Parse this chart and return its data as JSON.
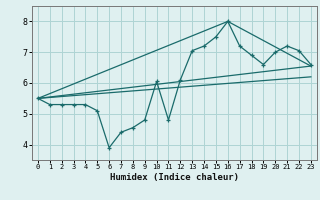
{
  "xlabel": "Humidex (Indice chaleur)",
  "ylabel": "",
  "background_color": "#dff0f0",
  "grid_color": "#aed4d4",
  "line_color": "#1a6b6b",
  "xlim": [
    -0.5,
    23.5
  ],
  "ylim": [
    3.5,
    8.5
  ],
  "xticks": [
    0,
    1,
    2,
    3,
    4,
    5,
    6,
    7,
    8,
    9,
    10,
    11,
    12,
    13,
    14,
    15,
    16,
    17,
    18,
    19,
    20,
    21,
    22,
    23
  ],
  "yticks": [
    4,
    5,
    6,
    7,
    8
  ],
  "main_series_x": [
    0,
    1,
    2,
    3,
    4,
    5,
    6,
    7,
    8,
    9,
    10,
    11,
    12,
    13,
    14,
    15,
    16,
    17,
    18,
    19,
    20,
    21,
    22,
    23
  ],
  "main_series_y": [
    5.5,
    5.3,
    5.3,
    5.3,
    5.3,
    5.1,
    3.9,
    4.4,
    4.55,
    4.8,
    6.05,
    4.8,
    6.1,
    7.05,
    7.2,
    7.5,
    8.0,
    7.2,
    6.9,
    6.6,
    7.0,
    7.2,
    7.05,
    6.6
  ],
  "regression_lines": [
    {
      "x0": 0,
      "y0": 5.5,
      "x1": 23,
      "y1": 6.55
    },
    {
      "x0": 0,
      "y0": 5.5,
      "x1": 16,
      "y1": 8.0
    },
    {
      "x0": 16,
      "y0": 8.0,
      "x1": 23,
      "y1": 6.55
    },
    {
      "x0": 0,
      "y0": 5.5,
      "x1": 23,
      "y1": 6.2
    }
  ]
}
